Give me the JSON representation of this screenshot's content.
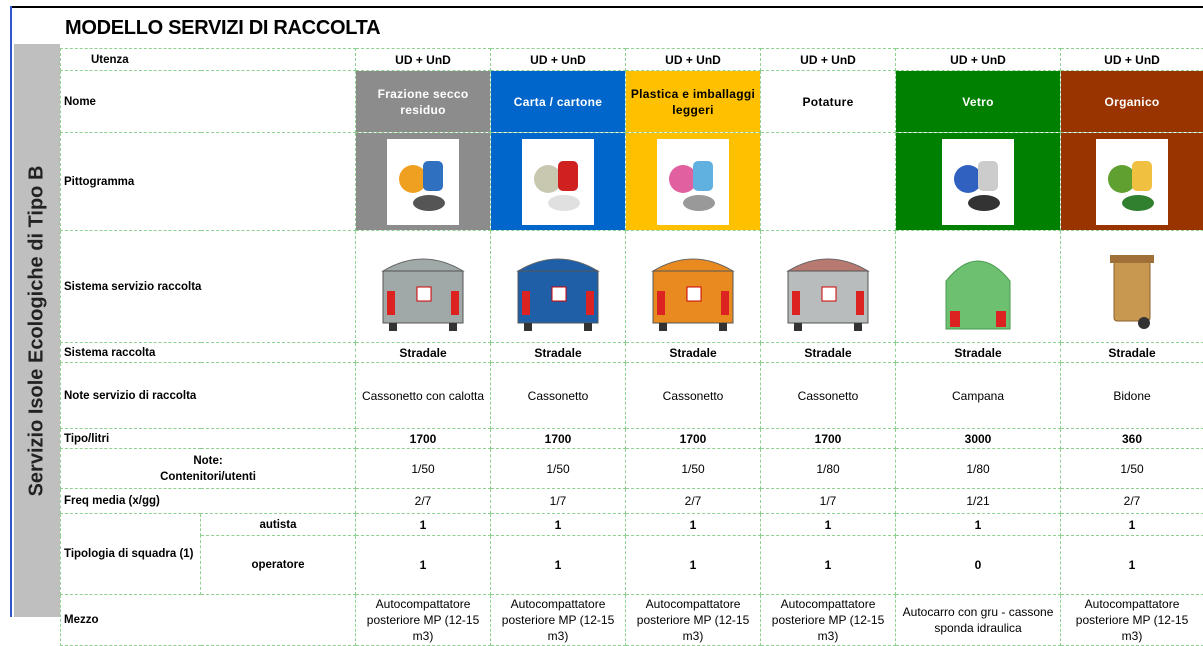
{
  "title": "MODELLO SERVIZI DI RACCOLTA",
  "side_label": "Servizio Isole Ecologiche di Tipo B",
  "table": {
    "rows": [
      {
        "label": "Utenza",
        "cells": [
          "UD + UnD",
          "UD + UnD",
          "UD + UnD",
          "UD + UnD",
          "UD + UnD",
          "UD + UnD"
        ]
      },
      {
        "label": "Nome",
        "cells": [
          "Frazione secco residuo",
          "Carta / cartone",
          "Plastica e imballaggi leggeri",
          "Potature",
          "Vetro",
          "Organico"
        ]
      },
      {
        "label": "Pittogramma"
      },
      {
        "label": "Sistema servizio raccolta"
      },
      {
        "label": "Sistema raccolta",
        "cells": [
          "Stradale",
          "Stradale",
          "Stradale",
          "Stradale",
          "Stradale",
          "Stradale"
        ]
      },
      {
        "label": "Note servizio di raccolta",
        "cells": [
          "Cassonetto con calotta",
          "Cassonetto",
          "Cassonetto",
          "Cassonetto",
          "Campana",
          "Bidone"
        ]
      },
      {
        "label": "Tipo/litri",
        "cells": [
          "1700",
          "1700",
          "1700",
          "1700",
          "3000",
          "360"
        ]
      },
      {
        "label": "Note:\nContenitori/utenti",
        "cells": [
          "1/50",
          "1/50",
          "1/50",
          "1/80",
          "1/80",
          "1/50"
        ]
      },
      {
        "label": "Freq media (x/gg)",
        "cells": [
          "2/7",
          "1/7",
          "2/7",
          "1/7",
          "1/21",
          "2/7"
        ]
      },
      {
        "label": "Tipologia di squadra (1)",
        "subrows": [
          {
            "label": "autista",
            "cells": [
              "1",
              "1",
              "1",
              "1",
              "1",
              "1"
            ]
          },
          {
            "label": "operatore",
            "cells": [
              "1",
              "1",
              "1",
              "1",
              "0",
              "1"
            ]
          }
        ]
      },
      {
        "label": "Mezzo",
        "cells": [
          "Autocompattatore posteriore MP (12-15 m3)",
          "Autocompattatore posteriore MP (12-15 m3)",
          "Autocompattatore posteriore MP (12-15 m3)",
          "Autocompattatore posteriore MP (12-15 m3)",
          "Autocarro con gru - cassone sponda idraulica",
          "Autocompattatore posteriore MP (12-15 m3)"
        ]
      }
    ]
  }
}
